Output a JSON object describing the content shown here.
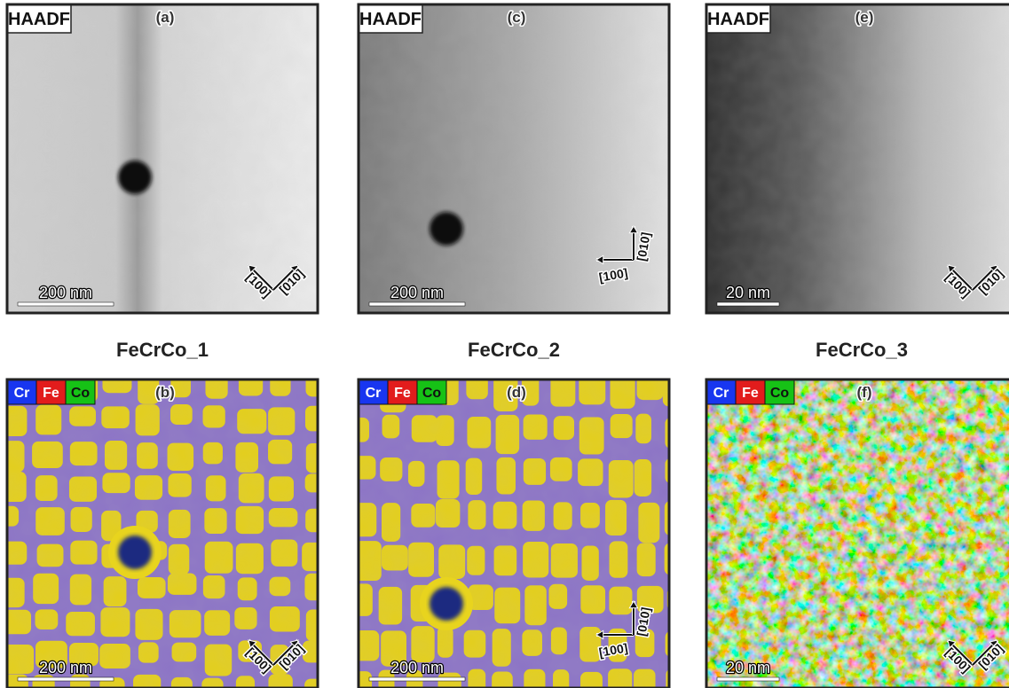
{
  "samples": [
    {
      "name": "FeCrCo_1",
      "haadf": {
        "label": "(a)",
        "badge": "HAADF",
        "scale": "200 nm",
        "axis1": "[100]",
        "axis2": "[010]"
      },
      "eds": {
        "label": "(b)",
        "legend": [
          "Cr",
          "Fe",
          "Co"
        ],
        "scale": "200 nm",
        "axis1": "[100]",
        "axis2": "[010]"
      }
    },
    {
      "name": "FeCrCo_2",
      "haadf": {
        "label": "(c)",
        "badge": "HAADF",
        "scale": "200 nm",
        "axis1": "[100]",
        "axis2": "[010]"
      },
      "eds": {
        "label": "(d)",
        "legend": [
          "Cr",
          "Fe",
          "Co"
        ],
        "scale": "200 nm",
        "axis1": "[100]",
        "axis2": "[010]"
      }
    },
    {
      "name": "FeCrCo_3",
      "haadf": {
        "label": "(e)",
        "badge": "HAADF",
        "scale": "20 nm",
        "axis1": "[100]",
        "axis2": "[010]"
      },
      "eds": {
        "label": "(f)",
        "legend": [
          "Cr",
          "Fe",
          "Co"
        ],
        "scale": "20 nm",
        "axis1": "[100]",
        "axis2": "[010]"
      }
    }
  ]
}
